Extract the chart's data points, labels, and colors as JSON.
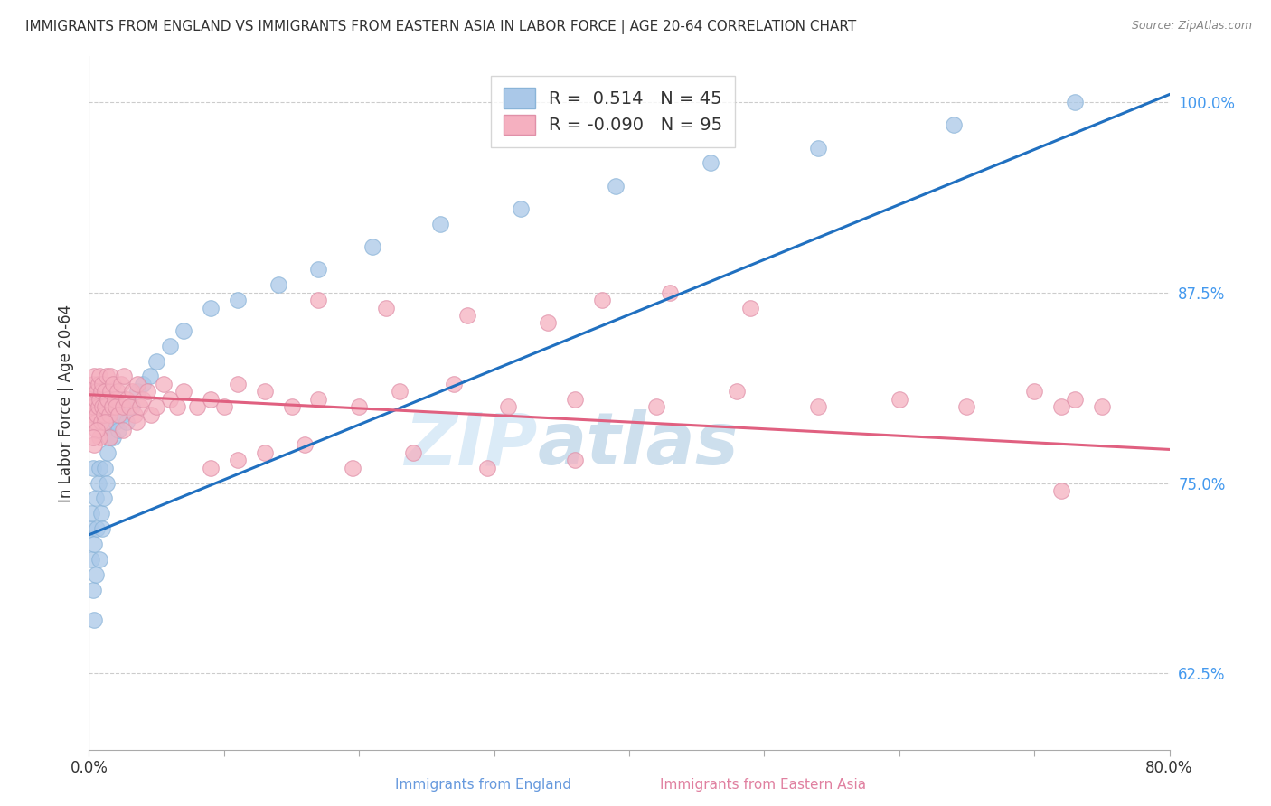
{
  "title": "IMMIGRANTS FROM ENGLAND VS IMMIGRANTS FROM EASTERN ASIA IN LABOR FORCE | AGE 20-64 CORRELATION CHART",
  "source": "Source: ZipAtlas.com",
  "ylabel": "In Labor Force | Age 20-64",
  "x_min": 0.0,
  "x_max": 0.8,
  "y_min": 0.575,
  "y_max": 1.03,
  "y_ticks": [
    0.625,
    0.75,
    0.875,
    1.0
  ],
  "y_tick_labels": [
    "62.5%",
    "75.0%",
    "87.5%",
    "100.0%"
  ],
  "england_R": 0.514,
  "england_N": 45,
  "eastern_asia_R": -0.09,
  "eastern_asia_N": 95,
  "england_color": "#aac8e8",
  "eastern_asia_color": "#f5b0c0",
  "england_line_color": "#2070c0",
  "eastern_asia_line_color": "#e06080",
  "legend_eng_label": "R =  0.514   N = 45",
  "legend_asia_label": "R = -0.090   N = 95",
  "bottom_label_eng": "Immigrants from England",
  "bottom_label_asia": "Immigrants from Eastern Asia",
  "watermark_part1": "ZIP",
  "watermark_part2": "atlas",
  "eng_x": [
    0.001,
    0.002,
    0.002,
    0.003,
    0.003,
    0.004,
    0.004,
    0.005,
    0.005,
    0.006,
    0.007,
    0.008,
    0.008,
    0.009,
    0.01,
    0.011,
    0.012,
    0.013,
    0.014,
    0.015,
    0.016,
    0.018,
    0.02,
    0.022,
    0.025,
    0.028,
    0.032,
    0.036,
    0.04,
    0.045,
    0.05,
    0.06,
    0.07,
    0.09,
    0.11,
    0.14,
    0.17,
    0.21,
    0.26,
    0.32,
    0.39,
    0.46,
    0.54,
    0.64,
    0.73
  ],
  "eng_y": [
    0.72,
    0.7,
    0.73,
    0.68,
    0.76,
    0.66,
    0.71,
    0.69,
    0.74,
    0.72,
    0.75,
    0.7,
    0.76,
    0.73,
    0.72,
    0.74,
    0.76,
    0.75,
    0.77,
    0.78,
    0.79,
    0.78,
    0.79,
    0.785,
    0.795,
    0.79,
    0.8,
    0.81,
    0.815,
    0.82,
    0.83,
    0.84,
    0.85,
    0.865,
    0.87,
    0.88,
    0.89,
    0.905,
    0.92,
    0.93,
    0.945,
    0.96,
    0.97,
    0.985,
    1.0
  ],
  "asia_x": [
    0.001,
    0.002,
    0.002,
    0.003,
    0.003,
    0.004,
    0.004,
    0.005,
    0.005,
    0.006,
    0.006,
    0.007,
    0.007,
    0.008,
    0.008,
    0.009,
    0.009,
    0.01,
    0.01,
    0.011,
    0.012,
    0.012,
    0.013,
    0.014,
    0.015,
    0.016,
    0.016,
    0.017,
    0.018,
    0.019,
    0.02,
    0.021,
    0.022,
    0.024,
    0.025,
    0.026,
    0.028,
    0.03,
    0.032,
    0.034,
    0.036,
    0.038,
    0.04,
    0.043,
    0.046,
    0.05,
    0.055,
    0.06,
    0.065,
    0.07,
    0.08,
    0.09,
    0.1,
    0.11,
    0.13,
    0.15,
    0.17,
    0.2,
    0.23,
    0.27,
    0.31,
    0.36,
    0.42,
    0.48,
    0.54,
    0.6,
    0.65,
    0.7,
    0.72,
    0.73,
    0.75,
    0.17,
    0.22,
    0.28,
    0.34,
    0.38,
    0.43,
    0.49,
    0.035,
    0.025,
    0.015,
    0.012,
    0.008,
    0.006,
    0.004,
    0.003,
    0.09,
    0.11,
    0.13,
    0.16,
    0.195,
    0.24,
    0.295,
    0.36,
    0.72
  ],
  "asia_y": [
    0.8,
    0.79,
    0.81,
    0.795,
    0.815,
    0.8,
    0.82,
    0.79,
    0.805,
    0.81,
    0.795,
    0.815,
    0.8,
    0.805,
    0.82,
    0.79,
    0.81,
    0.8,
    0.815,
    0.795,
    0.81,
    0.8,
    0.82,
    0.805,
    0.795,
    0.81,
    0.82,
    0.8,
    0.815,
    0.805,
    0.8,
    0.81,
    0.795,
    0.815,
    0.8,
    0.82,
    0.805,
    0.8,
    0.81,
    0.795,
    0.815,
    0.8,
    0.805,
    0.81,
    0.795,
    0.8,
    0.815,
    0.805,
    0.8,
    0.81,
    0.8,
    0.805,
    0.8,
    0.815,
    0.81,
    0.8,
    0.805,
    0.8,
    0.81,
    0.815,
    0.8,
    0.805,
    0.8,
    0.81,
    0.8,
    0.805,
    0.8,
    0.81,
    0.8,
    0.805,
    0.8,
    0.87,
    0.865,
    0.86,
    0.855,
    0.87,
    0.875,
    0.865,
    0.79,
    0.785,
    0.78,
    0.79,
    0.78,
    0.785,
    0.775,
    0.78,
    0.76,
    0.765,
    0.77,
    0.775,
    0.76,
    0.77,
    0.76,
    0.765,
    0.745
  ],
  "eng_line_x0": 0.0,
  "eng_line_x1": 0.8,
  "eng_line_y0": 0.716,
  "eng_line_y1": 1.005,
  "asia_line_x0": 0.0,
  "asia_line_x1": 0.8,
  "asia_line_y0": 0.808,
  "asia_line_y1": 0.772
}
